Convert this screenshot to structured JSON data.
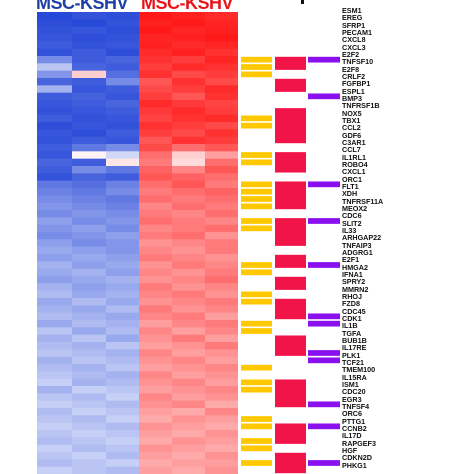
{
  "headers": {
    "mock": "MSC-KSHV",
    "kshv": "MSC-KSHV"
  },
  "colors": {
    "blue_dark": "#1c3fd6",
    "white": "#ffffff",
    "red_dark": "#ff0d0d",
    "annot_yellow": "#ffc800",
    "annot_red": "#f01448",
    "annot_purple": "#8a10f0"
  },
  "genes": [
    "ESM1",
    "EREG",
    "SFRP1",
    "PECAM1",
    "CXCL8",
    "CXCL3",
    "E2F2",
    "TNFSF10",
    "E2F8",
    "CRLF2",
    "FGFBP1",
    "ESPL1",
    "BMP3",
    "TNFRSF1B",
    "NOX5",
    "TBX1",
    "CCL2",
    "GDF6",
    "C3AR1",
    "CCL7",
    "IL1RL1",
    "ROBO4",
    "CXCL1",
    "ORC1",
    "FLT1",
    "XDH",
    "TNFRSF11A",
    "MEOX2",
    "CDC6",
    "SLIT2",
    "IL33",
    "ARHGAP22",
    "TNFAIP3",
    "ADGRG1",
    "E2F1",
    "HMGA2",
    "IFNA1",
    "SPRY2",
    "MMRN2",
    "RHOJ",
    "FZD8",
    "CDC45",
    "CDK1",
    "IL1B",
    "TGFA",
    "BUB1B",
    "IL17RE",
    "PLK1",
    "TCF21",
    "TMEM100",
    "IL15RA",
    "ISM1",
    "CDC20",
    "EGR3",
    "TNFSF4",
    "ORC6",
    "PTTG1",
    "CCNB2",
    "IL17D",
    "RAPGEF3",
    "HGF",
    "CDKN2D",
    "PHKG1"
  ],
  "heatmap": {
    "columns": 6,
    "rows": [
      [
        -0.95,
        -0.9,
        -0.92,
        0.95,
        0.92,
        0.88
      ],
      [
        -0.92,
        -0.95,
        -0.9,
        0.92,
        0.95,
        0.9
      ],
      [
        -0.9,
        -0.88,
        -0.92,
        0.95,
        0.9,
        0.92
      ],
      [
        -0.88,
        -0.92,
        -0.9,
        0.9,
        0.92,
        0.95
      ],
      [
        -0.85,
        -0.9,
        -0.88,
        0.92,
        0.88,
        0.9
      ],
      [
        -0.9,
        -0.85,
        -0.92,
        0.88,
        0.92,
        0.85
      ],
      [
        -0.6,
        -0.85,
        -0.8,
        0.85,
        0.8,
        0.9
      ],
      [
        -0.3,
        -0.8,
        -0.85,
        0.8,
        0.88,
        0.85
      ],
      [
        -0.55,
        0.2,
        -0.75,
        0.85,
        0.75,
        0.8
      ],
      [
        -0.8,
        -0.85,
        -0.6,
        0.7,
        0.85,
        0.75
      ],
      [
        -0.4,
        -0.88,
        -0.85,
        0.75,
        0.8,
        0.88
      ],
      [
        -0.85,
        -0.82,
        -0.88,
        0.8,
        0.7,
        0.85
      ],
      [
        -0.88,
        -0.85,
        -0.8,
        0.88,
        0.82,
        0.78
      ],
      [
        -0.9,
        -0.88,
        -0.85,
        0.82,
        0.88,
        0.8
      ],
      [
        -0.85,
        -0.9,
        -0.88,
        0.78,
        0.85,
        0.88
      ],
      [
        -0.92,
        -0.88,
        -0.9,
        0.85,
        0.8,
        0.75
      ],
      [
        -0.88,
        -0.92,
        -0.85,
        0.8,
        0.75,
        0.85
      ],
      [
        -0.9,
        -0.85,
        -0.88,
        0.7,
        0.85,
        0.8
      ],
      [
        -0.85,
        -0.7,
        -0.6,
        0.75,
        0.6,
        0.7
      ],
      [
        -0.88,
        0.05,
        -0.2,
        0.6,
        0.2,
        0.4
      ],
      [
        -0.8,
        -0.85,
        0.1,
        0.55,
        0.15,
        0.6
      ],
      [
        -0.85,
        -0.6,
        -0.7,
        0.65,
        0.5,
        0.7
      ],
      [
        -0.9,
        -0.8,
        -0.85,
        0.7,
        0.65,
        0.6
      ],
      [
        -0.7,
        -0.75,
        -0.65,
        0.6,
        0.7,
        0.55
      ],
      [
        -0.65,
        -0.7,
        -0.6,
        0.55,
        0.6,
        0.65
      ],
      [
        -0.6,
        -0.65,
        -0.7,
        0.6,
        0.55,
        0.6
      ],
      [
        -0.55,
        -0.6,
        -0.65,
        0.5,
        0.6,
        0.55
      ],
      [
        -0.6,
        -0.55,
        -0.6,
        0.55,
        0.5,
        0.6
      ],
      [
        -0.5,
        -0.6,
        -0.55,
        0.6,
        0.55,
        0.5
      ],
      [
        -0.55,
        -0.5,
        -0.6,
        0.5,
        0.55,
        0.6
      ],
      [
        -0.6,
        -0.55,
        -0.5,
        0.55,
        0.6,
        0.45
      ],
      [
        -0.5,
        -0.6,
        -0.55,
        0.45,
        0.5,
        0.55
      ],
      [
        -0.45,
        -0.5,
        -0.55,
        0.5,
        0.45,
        0.55
      ],
      [
        -0.5,
        -0.45,
        -0.5,
        0.55,
        0.5,
        0.45
      ],
      [
        -0.4,
        -0.5,
        -0.45,
        0.45,
        0.55,
        0.5
      ],
      [
        -0.45,
        -0.4,
        -0.5,
        0.5,
        0.45,
        0.55
      ],
      [
        -0.5,
        -0.45,
        -0.4,
        0.45,
        0.5,
        0.6
      ],
      [
        -0.4,
        -0.5,
        -0.45,
        0.55,
        0.45,
        0.5
      ],
      [
        -0.35,
        -0.45,
        -0.4,
        0.5,
        0.55,
        0.45
      ],
      [
        -0.45,
        -0.35,
        -0.45,
        0.45,
        0.5,
        0.55
      ],
      [
        -0.4,
        -0.45,
        -0.35,
        0.55,
        0.45,
        0.5
      ],
      [
        -0.35,
        -0.4,
        -0.45,
        0.5,
        0.55,
        0.4
      ],
      [
        -0.45,
        -0.35,
        -0.4,
        0.4,
        0.5,
        0.55
      ],
      [
        -0.3,
        -0.45,
        -0.35,
        0.5,
        0.4,
        0.5
      ],
      [
        -0.4,
        -0.3,
        -0.45,
        0.45,
        0.55,
        0.4
      ],
      [
        -0.35,
        -0.4,
        -0.3,
        0.4,
        0.45,
        0.55
      ],
      [
        -0.3,
        -0.35,
        -0.4,
        0.5,
        0.4,
        0.45
      ],
      [
        -0.4,
        -0.3,
        -0.35,
        0.45,
        0.5,
        0.4
      ],
      [
        -0.35,
        -0.4,
        -0.3,
        0.4,
        0.45,
        0.5
      ],
      [
        -0.3,
        -0.35,
        -0.4,
        0.5,
        0.4,
        0.45
      ],
      [
        -0.25,
        -0.4,
        -0.35,
        0.45,
        0.5,
        0.4
      ],
      [
        -0.4,
        -0.25,
        -0.3,
        0.4,
        0.45,
        0.5
      ],
      [
        -0.3,
        -0.35,
        -0.25,
        0.5,
        0.4,
        0.45
      ],
      [
        -0.25,
        -0.3,
        -0.35,
        0.45,
        0.5,
        0.35
      ],
      [
        -0.35,
        -0.25,
        -0.3,
        0.4,
        0.35,
        0.5
      ],
      [
        -0.3,
        -0.35,
        -0.25,
        0.35,
        0.45,
        0.4
      ],
      [
        -0.25,
        -0.3,
        -0.35,
        0.45,
        0.4,
        0.35
      ],
      [
        -0.3,
        -0.25,
        -0.3,
        0.4,
        0.35,
        0.45
      ],
      [
        -0.35,
        -0.3,
        -0.25,
        0.35,
        0.45,
        0.4
      ],
      [
        -0.25,
        -0.35,
        -0.3,
        0.45,
        0.4,
        0.35
      ],
      [
        -0.3,
        -0.25,
        -0.35,
        0.4,
        0.35,
        0.45
      ],
      [
        -0.35,
        -0.3,
        -0.25,
        0.35,
        0.4,
        0.4
      ],
      [
        -0.25,
        -0.3,
        -0.35,
        0.4,
        0.35,
        0.45
      ]
    ]
  },
  "annotations": {
    "yellow_rows": [
      6,
      7,
      8,
      14,
      15,
      19,
      20,
      23,
      24,
      25,
      26,
      28,
      29,
      34,
      35,
      38,
      39,
      42,
      43,
      48,
      50,
      51,
      55,
      56,
      58,
      59,
      61
    ],
    "red_rows": [
      [
        6,
        7
      ],
      [
        9,
        10
      ],
      [
        13,
        17
      ],
      [
        19,
        21
      ],
      [
        23,
        26
      ],
      [
        28,
        31
      ],
      [
        33,
        34
      ],
      [
        36,
        37
      ],
      [
        39,
        41
      ],
      [
        44,
        46
      ],
      [
        50,
        53
      ],
      [
        56,
        58
      ],
      [
        60,
        62
      ]
    ],
    "purple_rows": [
      6,
      11,
      23,
      28,
      34,
      41,
      42,
      46,
      47,
      53,
      56,
      61
    ]
  }
}
